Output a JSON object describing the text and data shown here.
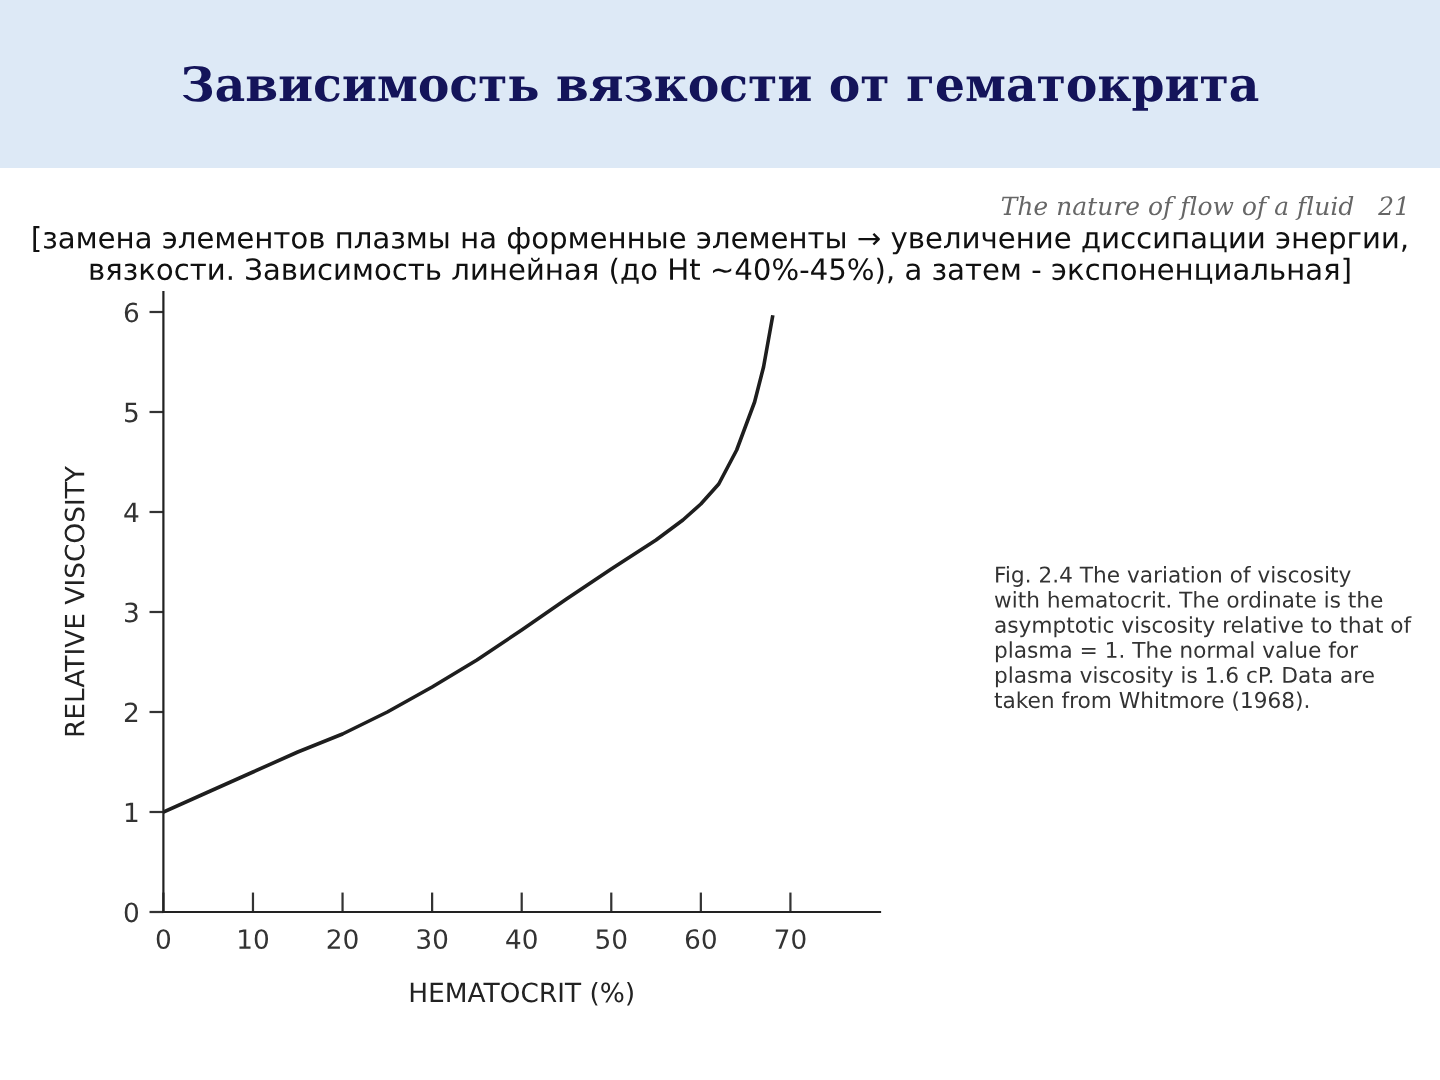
{
  "chart_data": {
    "type": "line",
    "title": "Зависимость вязкости от гематокрита",
    "subtitle": "[замена элементов плазмы на форменные элементы → увеличение диссипации энергии,\nвязкости. Зависимость линейная (до Ht ~40%-45%), а затем - экспоненциальная]",
    "xlabel": "HEMATOCRIT (%)",
    "ylabel": "RELATIVE VISCOSITY",
    "annotations": [
      "The nature of flow of a fluid   21",
      "Fig. 2.4 The variation of viscosity\nwith hematocrit. The ordinate is the\nasymptotic viscosity relative to that of\nplasma = 1. The normal value for\nplasma viscosity is 1.6 cP. Data are\ntaken from Whitmore (1968)."
    ],
    "x": [
      0,
      5,
      10,
      15,
      20,
      25,
      30,
      35,
      40,
      45,
      50,
      55,
      58,
      60,
      62,
      64,
      66,
      67,
      68
    ],
    "series": [
      {
        "color": "#1e1e1e",
        "values": [
          1.0,
          1.2,
          1.4,
          1.6,
          1.78,
          2.0,
          2.25,
          2.52,
          2.82,
          3.13,
          3.43,
          3.72,
          3.92,
          4.08,
          4.28,
          4.62,
          5.1,
          5.45,
          5.95
        ]
      }
    ],
    "xlim": [
      0,
      80
    ],
    "xticks": [
      0,
      10,
      20,
      30,
      40,
      50,
      60,
      70
    ],
    "ylim": [
      0,
      6.2
    ],
    "yticks": [
      0,
      1,
      2,
      3,
      4,
      5,
      6
    ],
    "grid": false,
    "marker": "none",
    "line_style": "solid"
  }
}
